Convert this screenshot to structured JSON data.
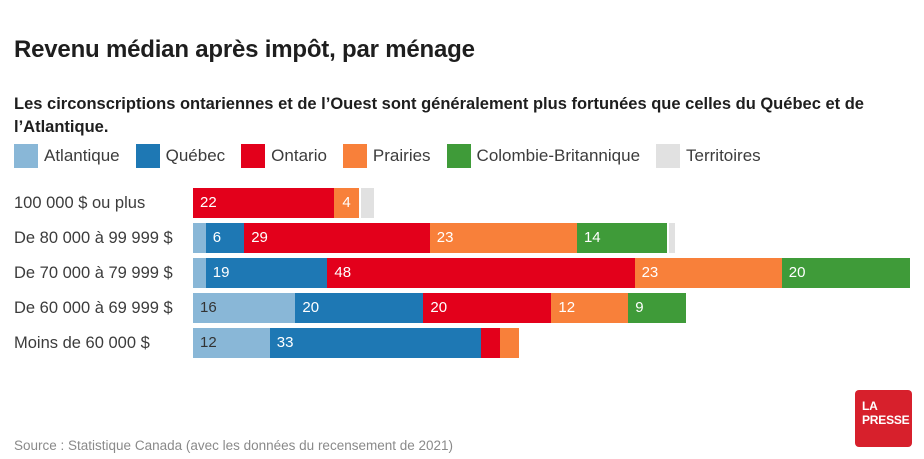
{
  "header": {
    "title": "Revenu médian après impôt, par ménage",
    "subtitle": "Les circonscriptions ontariennes et de l’Ouest sont généralement plus fortunées que celles du Québec et de l’Atlantique."
  },
  "chart_data": {
    "type": "bar",
    "stacked": true,
    "orientation": "horizontal",
    "title": "Revenu médian après impôt, par ménage",
    "legend_position": "top",
    "value_label_min": 4,
    "categories": [
      "100 000 $ ou plus",
      "De 80 000 à 99 999 $",
      "De 70 000 à 79 999 $",
      "De 60 000 à 69 999 $",
      "Moins de 60 000 $"
    ],
    "series": [
      {
        "name": "Atlantique",
        "color": "#89b7d7",
        "text_color": "#333333",
        "values": [
          0,
          2,
          2,
          16,
          12
        ]
      },
      {
        "name": "Québec",
        "color": "#1e78b4",
        "text_color": "#ffffff",
        "values": [
          0,
          6,
          19,
          20,
          33
        ]
      },
      {
        "name": "Ontario",
        "color": "#e3001b",
        "text_color": "#ffffff",
        "values": [
          22,
          29,
          48,
          20,
          3
        ]
      },
      {
        "name": "Prairies",
        "color": "#f8803a",
        "text_color": "#ffffff",
        "values": [
          4,
          23,
          23,
          12,
          3
        ]
      },
      {
        "name": "Colombie-Britannique",
        "color": "#3f9b39",
        "text_color": "#ffffff",
        "values": [
          0,
          14,
          20,
          9,
          0
        ]
      },
      {
        "name": "Territoires",
        "color": "#e1e1e1",
        "text_color": "#333333",
        "values": [
          2,
          1,
          0,
          0,
          0
        ]
      }
    ],
    "xlim": [
      0,
      114
    ],
    "grid": false
  },
  "footer": {
    "source": "Source : Statistique Canada (avec les données du recensement de 2021)",
    "logo": {
      "line1": "LA",
      "line2": "PRESSE",
      "color": "#d7202c"
    }
  }
}
